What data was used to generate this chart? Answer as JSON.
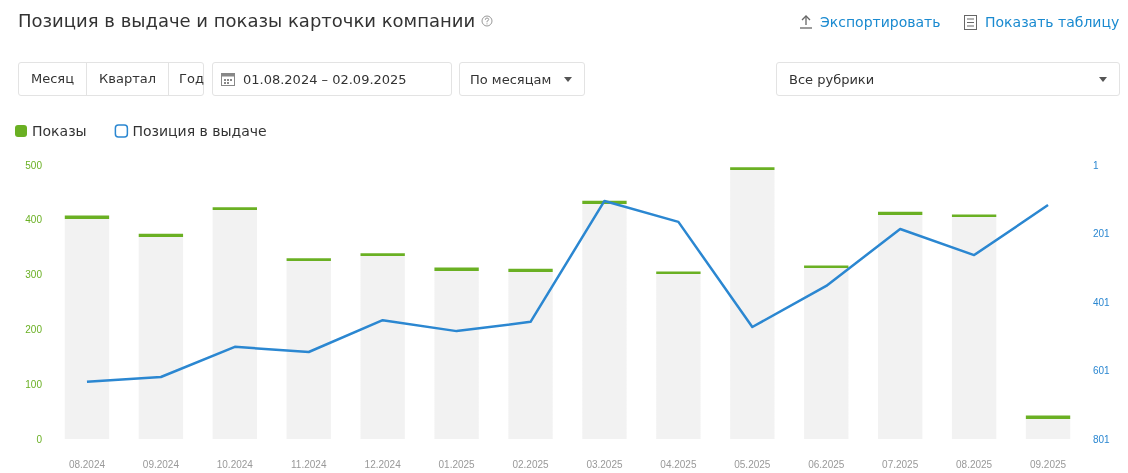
{
  "chart_data": {
    "type": "bar",
    "title": "Позиция в выдаче и показы карточки компании",
    "annotations": [
      "Экспортировать",
      "Показать таблицу",
      "Месяц",
      "Квартал",
      "Год",
      "01.08.2024 – 02.09.2025",
      "По месяцам",
      "Все рубрики"
    ],
    "categories": [
      "08.2024",
      "09.2024",
      "10.2024",
      "11.2024",
      "12.2024",
      "01.2025",
      "02.2025",
      "03.2025",
      "04.2025",
      "05.2025",
      "06.2025",
      "07.2025",
      "08.2025",
      "09.2025"
    ],
    "series": [
      {
        "name": "Показы",
        "color": "#6ab023",
        "values": [
          405,
          372,
          420,
          327,
          336,
          310,
          308,
          432,
          303,
          493,
          314,
          412,
          407,
          40
        ]
      },
      {
        "name": "Позиция в выдаче",
        "type": "line",
        "axis": "y2",
        "color": "#2b87d1",
        "values": [
          634,
          620,
          532,
          547,
          454,
          486,
          459,
          106,
          167,
          474,
          354,
          188,
          264,
          118
        ]
      }
    ],
    "ylim": [
      0,
      500
    ],
    "yticks": [
      0,
      100,
      200,
      300,
      400,
      500
    ],
    "y2lim": [
      801,
      1
    ],
    "y2ticks": [
      1,
      201,
      401,
      601,
      801
    ],
    "legend": "top left",
    "grid": false,
    "marker": "none"
  }
}
